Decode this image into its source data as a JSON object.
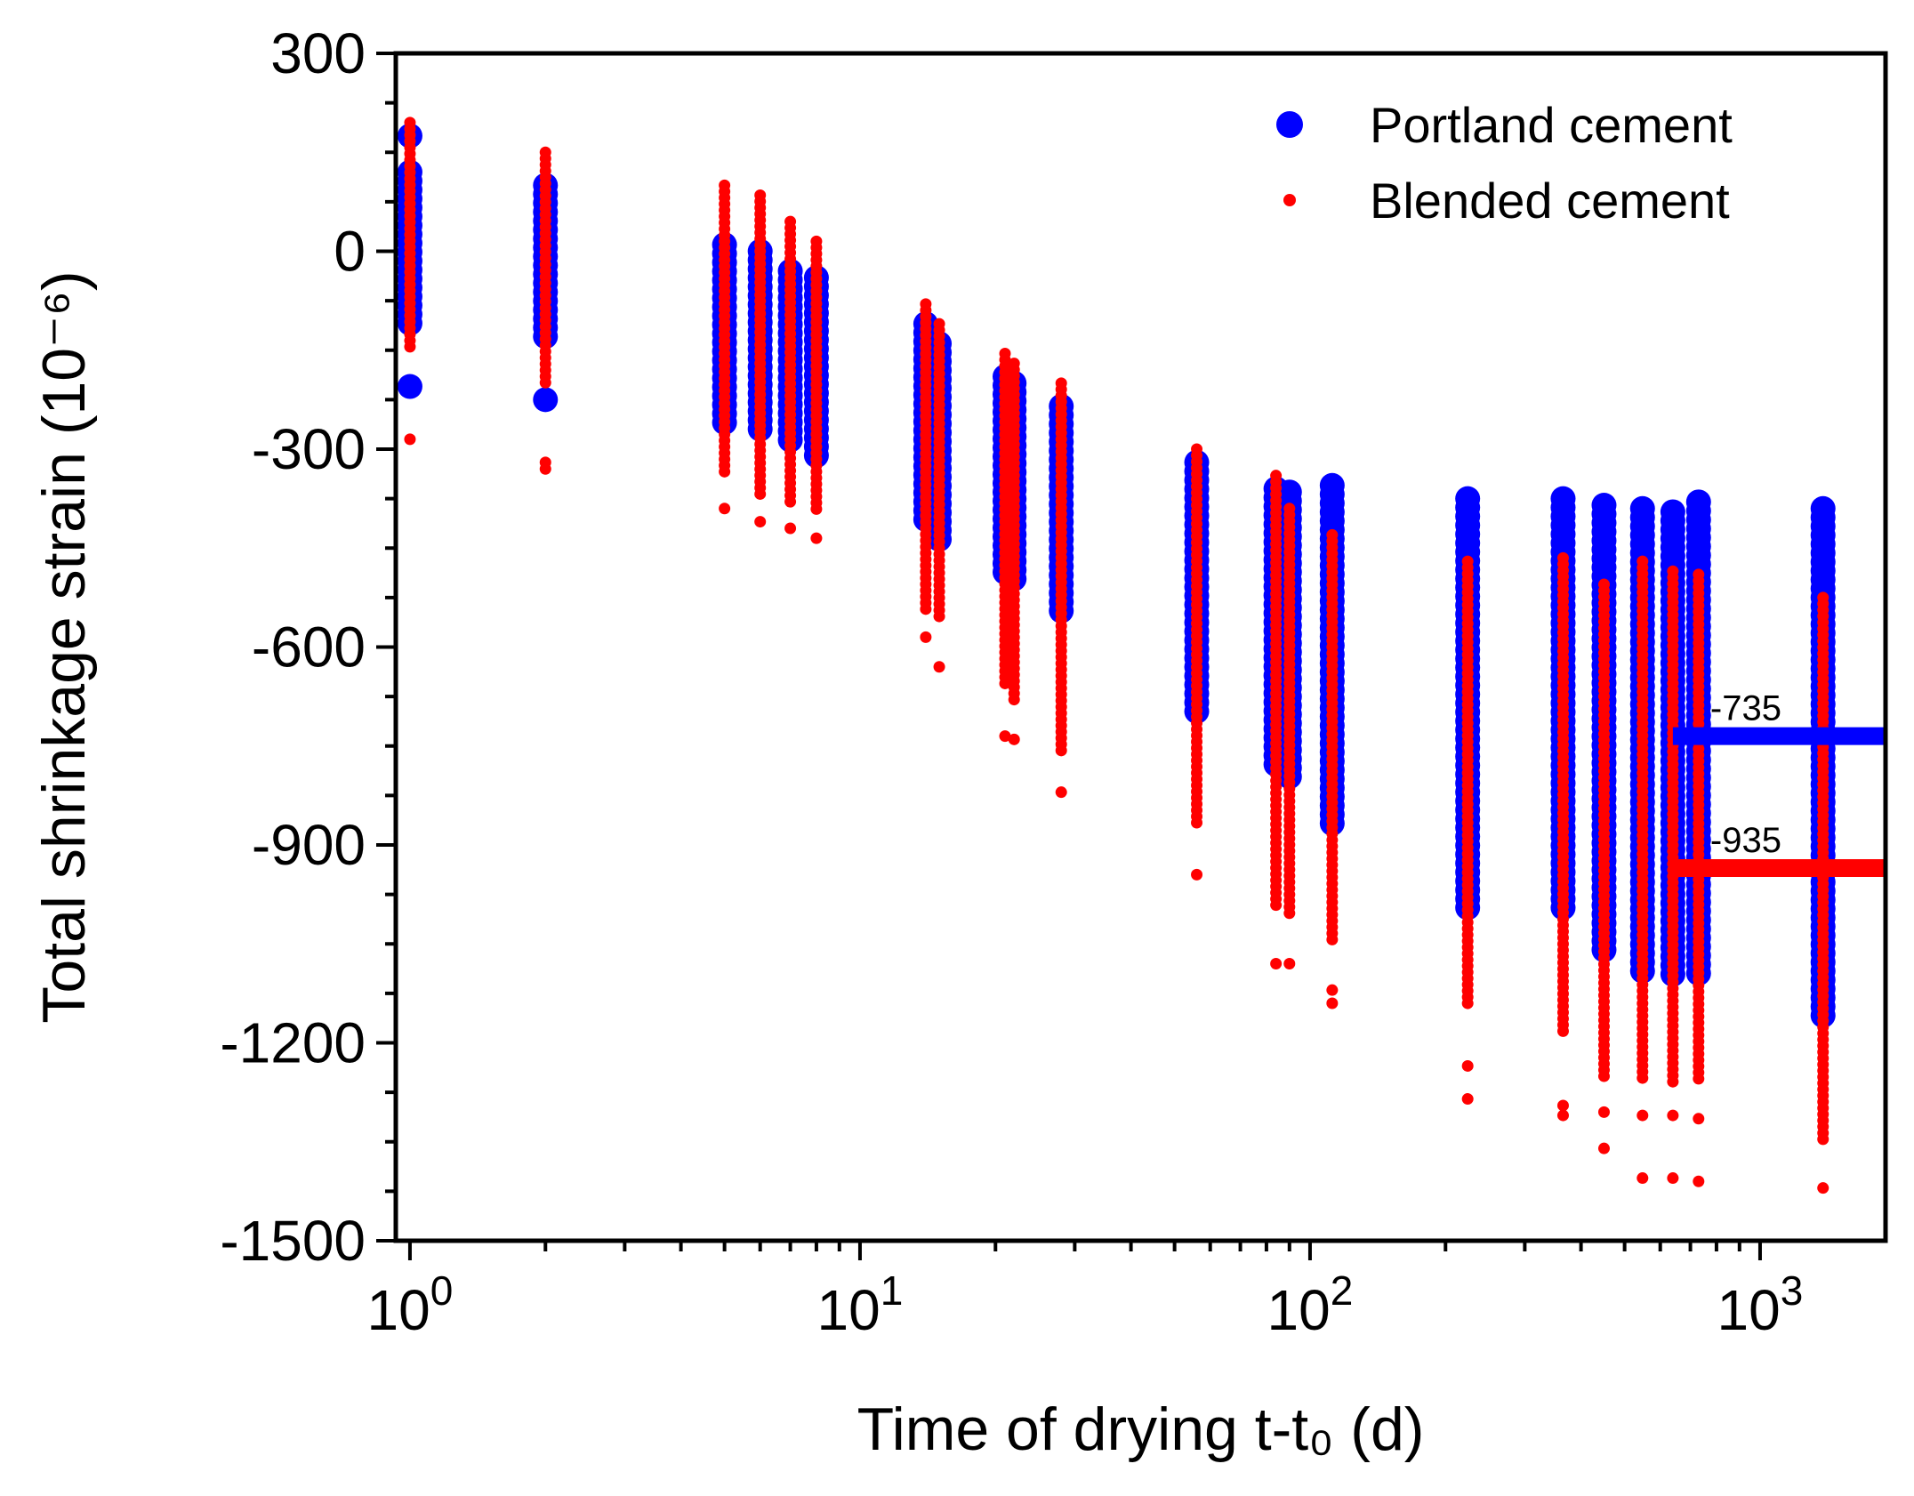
{
  "chart_data": {
    "type": "scatter",
    "xscale": "log",
    "xlim": [
      0.93,
      1900
    ],
    "ylim": [
      -1500,
      300
    ],
    "xlabel": "Time of drying t-t₀ (d)",
    "ylabel": "Total shrinkage strain (10⁻⁶)",
    "yticks": [
      300,
      0,
      -300,
      -600,
      -900,
      -1200,
      -1500
    ],
    "xticks": [
      {
        "base": "10",
        "exp": "0",
        "value": 1
      },
      {
        "base": "10",
        "exp": "1",
        "value": 10
      },
      {
        "base": "10",
        "exp": "2",
        "value": 100
      },
      {
        "base": "10",
        "exp": "3",
        "value": 1000
      }
    ],
    "legend": {
      "position": "top-right",
      "entries": [
        "Portland cement",
        "Blended cement"
      ]
    },
    "series": [
      {
        "name": "Portland cement",
        "color": "#0000ff",
        "marker": "large-circle",
        "columns": [
          {
            "x": 1,
            "ymin": -110,
            "ymax": 120,
            "outliers": [
              175,
              -205
            ]
          },
          {
            "x": 2,
            "ymin": -130,
            "ymax": 100,
            "outliers": [
              -225
            ]
          },
          {
            "x": 5,
            "ymin": -260,
            "ymax": 10,
            "outliers": []
          },
          {
            "x": 6,
            "ymin": -280,
            "ymax": 0,
            "outliers": []
          },
          {
            "x": 7,
            "ymin": -290,
            "ymax": -30,
            "outliers": []
          },
          {
            "x": 8,
            "ymin": -310,
            "ymax": -40,
            "outliers": []
          },
          {
            "x": 14,
            "ymin": -410,
            "ymax": -110,
            "outliers": []
          },
          {
            "x": 15,
            "ymin": -440,
            "ymax": -140,
            "outliers": []
          },
          {
            "x": 21,
            "ymin": -490,
            "ymax": -190,
            "outliers": []
          },
          {
            "x": 22,
            "ymin": -500,
            "ymax": -200,
            "outliers": []
          },
          {
            "x": 28,
            "ymin": -550,
            "ymax": -235,
            "outliers": []
          },
          {
            "x": 56,
            "ymin": -700,
            "ymax": -320,
            "outliers": []
          },
          {
            "x": 84,
            "ymin": -790,
            "ymax": -360,
            "outliers": []
          },
          {
            "x": 90,
            "ymin": -800,
            "ymax": -365,
            "outliers": []
          },
          {
            "x": 112,
            "ymin": -880,
            "ymax": -355,
            "outliers": []
          },
          {
            "x": 224,
            "ymin": -1000,
            "ymax": -375,
            "outliers": []
          },
          {
            "x": 365,
            "ymin": -1000,
            "ymax": -375,
            "outliers": []
          },
          {
            "x": 450,
            "ymin": -1060,
            "ymax": -385,
            "outliers": []
          },
          {
            "x": 548,
            "ymin": -1100,
            "ymax": -390,
            "outliers": []
          },
          {
            "x": 640,
            "ymin": -1100,
            "ymax": -395,
            "outliers": []
          },
          {
            "x": 730,
            "ymin": -1100,
            "ymax": -380,
            "outliers": []
          },
          {
            "x": 1380,
            "ymin": -1160,
            "ymax": -390,
            "outliers": []
          }
        ]
      },
      {
        "name": "Blended cement",
        "color": "#ff0000",
        "marker": "small-circle",
        "columns": [
          {
            "x": 1,
            "ymin": -145,
            "ymax": 195,
            "outliers": [
              -285
            ]
          },
          {
            "x": 2,
            "ymin": -200,
            "ymax": 150,
            "outliers": [
              -320,
              -330
            ]
          },
          {
            "x": 5,
            "ymin": -340,
            "ymax": 100,
            "outliers": [
              -390
            ]
          },
          {
            "x": 6,
            "ymin": -370,
            "ymax": 85,
            "outliers": [
              -410
            ]
          },
          {
            "x": 7,
            "ymin": -380,
            "ymax": 45,
            "outliers": [
              -420
            ]
          },
          {
            "x": 8,
            "ymin": -400,
            "ymax": 15,
            "outliers": [
              -435
            ]
          },
          {
            "x": 14,
            "ymin": -550,
            "ymax": -80,
            "outliers": [
              -585
            ]
          },
          {
            "x": 15,
            "ymin": -560,
            "ymax": -110,
            "outliers": [
              -630
            ]
          },
          {
            "x": 21,
            "ymin": -660,
            "ymax": -155,
            "outliers": [
              -735
            ]
          },
          {
            "x": 22,
            "ymin": -680,
            "ymax": -170,
            "outliers": [
              -740
            ]
          },
          {
            "x": 28,
            "ymin": -760,
            "ymax": -200,
            "outliers": [
              -820
            ]
          },
          {
            "x": 56,
            "ymin": -870,
            "ymax": -300,
            "outliers": [
              -945
            ]
          },
          {
            "x": 84,
            "ymin": -1000,
            "ymax": -340,
            "outliers": [
              -1080
            ]
          },
          {
            "x": 90,
            "ymin": -1010,
            "ymax": -390,
            "outliers": [
              -1080
            ]
          },
          {
            "x": 112,
            "ymin": -1045,
            "ymax": -430,
            "outliers": [
              -1140,
              -1120
            ]
          },
          {
            "x": 224,
            "ymin": -1145,
            "ymax": -470,
            "outliers": [
              -1235,
              -1285
            ]
          },
          {
            "x": 365,
            "ymin": -1185,
            "ymax": -465,
            "outliers": [
              -1295,
              -1310
            ]
          },
          {
            "x": 450,
            "ymin": -1255,
            "ymax": -505,
            "outliers": [
              -1360,
              -1305
            ]
          },
          {
            "x": 548,
            "ymin": -1260,
            "ymax": -470,
            "outliers": [
              -1405,
              -1310
            ]
          },
          {
            "x": 640,
            "ymin": -1260,
            "ymax": -485,
            "outliers": [
              -1405,
              -1310
            ]
          },
          {
            "x": 730,
            "ymin": -1260,
            "ymax": -490,
            "outliers": [
              -1410,
              -1315
            ]
          },
          {
            "x": 1380,
            "ymin": -1350,
            "ymax": -525,
            "outliers": [
              -1420
            ]
          }
        ]
      }
    ],
    "reference_lines": [
      {
        "label": "-735",
        "y": -735,
        "color": "#0000ff",
        "x_start": 640,
        "x_end": 1900
      },
      {
        "label": "-935",
        "y": -935,
        "color": "#ff0000",
        "x_start": 640,
        "x_end": 1900
      }
    ]
  }
}
